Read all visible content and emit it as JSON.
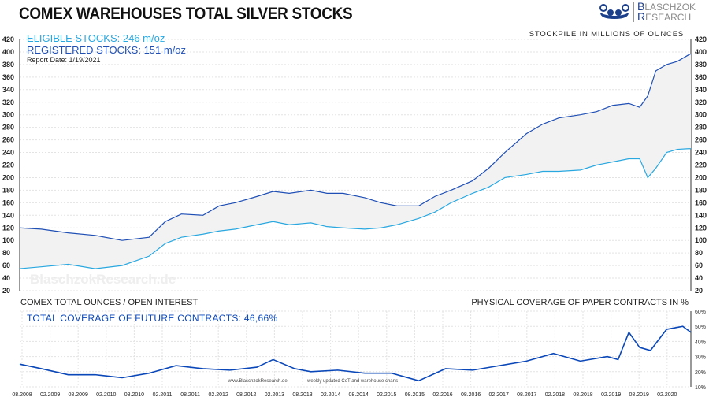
{
  "header": {
    "title": "COMEX WAREHOUSES  TOTAL SILVER STOCKS",
    "logo": "BLASCHZOK RESEARCH"
  },
  "colors": {
    "eligible": "#29a8e0",
    "total": "#1f4fb5",
    "coverage": "#0a47b8",
    "fill": "#f2f2f2",
    "grid": "#e3e3e3"
  },
  "main": {
    "eligible_label": "ELIGIBLE STOCKS: 246 m/oz",
    "registered_label": "REGISTERED STOCKS: 151 m/oz",
    "report_date": "Report Date: 1/19/2021",
    "unit_label": "STOCKPILE IN MILLIONS OF OUNCES",
    "watermark": "BlaschzokResearch.de"
  },
  "lower": {
    "title": "COMEX TOTAL OUNCES / OPEN INTEREST",
    "coverage_label": "TOTAL COVERAGE OF FUTURE CONTRACTS: 46,66%",
    "right_title": "PHYSICAL COVERAGE OF PAPER CONTRACTS IN %",
    "credit_site": "www.BlaschzokResearch.de",
    "credit_note": "weekly updated CoT and warehouse charts"
  },
  "chart_data": [
    {
      "type": "line",
      "ylim": [
        20,
        420
      ],
      "yticks": [
        20,
        40,
        60,
        80,
        100,
        120,
        140,
        160,
        180,
        200,
        220,
        240,
        260,
        280,
        300,
        320,
        340,
        360,
        380,
        400,
        420
      ],
      "grid": true,
      "x": [
        2008.6,
        2009.0,
        2009.5,
        2010.0,
        2010.5,
        2011.0,
        2011.3,
        2011.6,
        2012.0,
        2012.3,
        2012.6,
        2013.0,
        2013.3,
        2013.6,
        2014.0,
        2014.3,
        2014.6,
        2015.0,
        2015.3,
        2015.6,
        2016.0,
        2016.3,
        2016.6,
        2017.0,
        2017.3,
        2017.6,
        2018.0,
        2018.3,
        2018.6,
        2019.0,
        2019.3,
        2019.6,
        2019.9,
        2020.1,
        2020.25,
        2020.4,
        2020.6,
        2020.8,
        2021.0,
        2021.05
      ],
      "series": [
        {
          "key": "total",
          "values": [
            120,
            118,
            112,
            108,
            100,
            105,
            130,
            142,
            140,
            155,
            160,
            170,
            178,
            175,
            180,
            175,
            175,
            168,
            160,
            155,
            155,
            170,
            180,
            195,
            215,
            240,
            270,
            285,
            295,
            300,
            305,
            315,
            318,
            312,
            330,
            370,
            380,
            385,
            395,
            397
          ]
        },
        {
          "key": "eligible",
          "values": [
            55,
            58,
            62,
            55,
            60,
            75,
            95,
            105,
            110,
            115,
            118,
            125,
            130,
            125,
            128,
            122,
            120,
            118,
            120,
            125,
            135,
            145,
            160,
            175,
            185,
            200,
            205,
            210,
            210,
            212,
            220,
            225,
            230,
            230,
            200,
            215,
            240,
            245,
            246,
            246
          ]
        }
      ]
    },
    {
      "type": "line",
      "ylim": [
        10,
        60
      ],
      "yticks": [
        "10%",
        "20%",
        "30%",
        "40%",
        "50%",
        "60%"
      ],
      "grid": true,
      "xticks": [
        "08.2008",
        "02.2009",
        "08.2009",
        "02.2010",
        "08.2010",
        "02.2011",
        "08.2011",
        "02.2012",
        "08.2012",
        "02.2013",
        "08.2013",
        "02.2014",
        "08.2014",
        "02.2015",
        "08.2015",
        "02.2016",
        "08.2016",
        "02.2017",
        "08.2017",
        "02.2018",
        "08.2018",
        "02.2019",
        "08.2019",
        "02.2020"
      ],
      "x": [
        2008.6,
        2009.0,
        2009.5,
        2010.0,
        2010.5,
        2011.0,
        2011.5,
        2012.0,
        2012.5,
        2013.0,
        2013.3,
        2013.7,
        2014.0,
        2014.5,
        2015.0,
        2015.5,
        2016.0,
        2016.5,
        2017.0,
        2017.5,
        2018.0,
        2018.5,
        2019.0,
        2019.5,
        2019.7,
        2019.9,
        2020.1,
        2020.3,
        2020.6,
        2020.9,
        2021.05
      ],
      "values": [
        25,
        22,
        18,
        18,
        16,
        19,
        24,
        22,
        21,
        23,
        28,
        22,
        20,
        21,
        19,
        19,
        14,
        22,
        21,
        24,
        27,
        32,
        27,
        30,
        28,
        46,
        36,
        34,
        48,
        50,
        46
      ]
    }
  ]
}
